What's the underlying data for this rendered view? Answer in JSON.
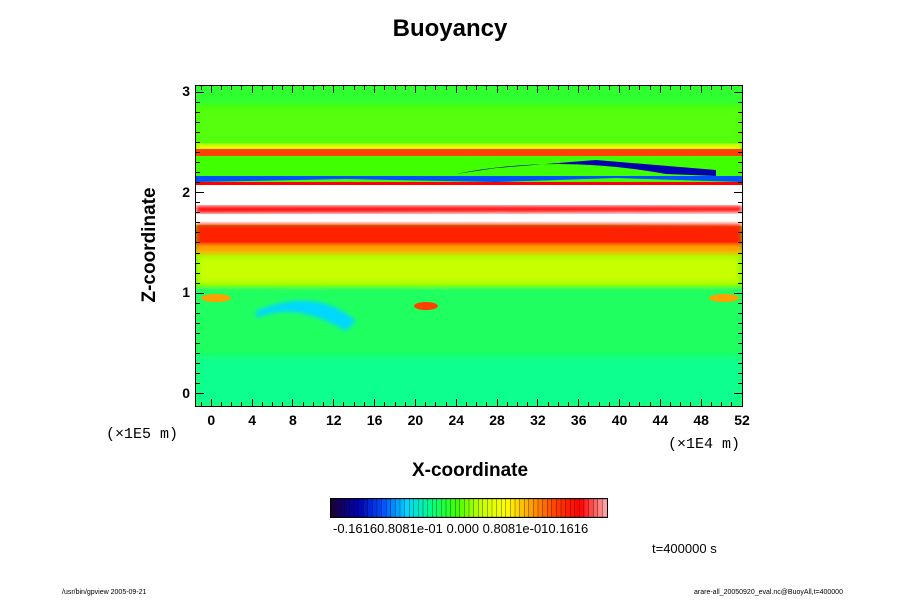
{
  "chart_data": {
    "type": "heatmap",
    "title": "Buoyancy",
    "xlabel": "X-coordinate",
    "ylabel": "Z-coordinate",
    "x_unit": "(×1E4 m)",
    "y_unit": "(×1E5 m)",
    "xlim": [
      -1.5,
      52
    ],
    "ylim": [
      -0.12,
      3.06
    ],
    "x_ticks": [
      "0",
      "4",
      "8",
      "12",
      "16",
      "20",
      "24",
      "28",
      "32",
      "36",
      "40",
      "44",
      "48",
      "52"
    ],
    "y_ticks": [
      "0",
      "1",
      "2",
      "3"
    ],
    "colorbar": {
      "range": [
        -0.1616,
        0.1616
      ],
      "labels": "-0.16160.8081e-01 0.000 0.8081e-010.1616",
      "colormap": [
        "#1a0040",
        "#0000b0",
        "#0050ff",
        "#00d8ff",
        "#00ff80",
        "#40ff00",
        "#c8ff00",
        "#ffff00",
        "#ffa000",
        "#ff4000",
        "#ff0000",
        "#ffa0a0"
      ]
    },
    "bands": [
      {
        "z_range": [
          2.85,
          3.06
        ],
        "value": 0.01,
        "description": "green"
      },
      {
        "z_range": [
          2.2,
          2.3
        ],
        "value": -0.1,
        "description": "blue band"
      },
      {
        "z_range": [
          1.75,
          2.05
        ],
        "value": 0.2,
        "description": "saturated white band"
      },
      {
        "z_range": [
          1.5,
          1.72
        ],
        "value": 0.13,
        "description": "red band"
      },
      {
        "z_range": [
          1.0,
          1.5
        ],
        "value": 0.04,
        "description": "yellow-green"
      },
      {
        "z_range": [
          -0.12,
          0.9
        ],
        "value": -0.02,
        "description": "cyan-green"
      }
    ]
  },
  "time_label": "t=400000 s",
  "footer_left": "/usr/bin/gpview 2005-09-21",
  "footer_right": "arare-all_20050920_eval.nc@BuoyAll,t=400000"
}
